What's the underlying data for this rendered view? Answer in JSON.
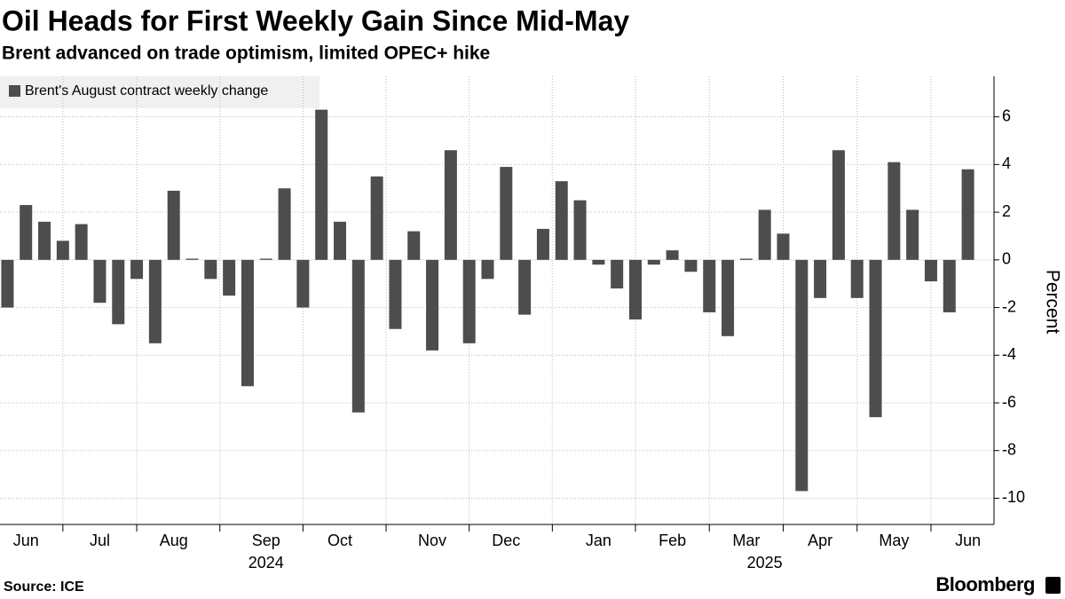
{
  "chart_data": {
    "type": "bar",
    "title": "Oil Heads for First Weekly Gain Since Mid-May",
    "subtitle": "Brent advanced on trade optimism, limited OPEC+ hike",
    "legend_label": "Brent's August contract weekly change",
    "y_axis_label": "Percent",
    "source": "Source: ICE",
    "brand": "Bloomberg",
    "color": "#4d4d4d",
    "categories": [
      null,
      "Jun",
      null,
      null,
      null,
      "Jul",
      null,
      null,
      null,
      "Aug",
      null,
      null,
      null,
      null,
      "Sep",
      null,
      null,
      null,
      "Oct",
      null,
      null,
      null,
      null,
      "Nov",
      null,
      null,
      null,
      "Dec",
      null,
      null,
      null,
      null,
      "Jan",
      null,
      null,
      null,
      "Feb",
      null,
      null,
      null,
      "Mar",
      null,
      null,
      null,
      "Apr",
      null,
      null,
      null,
      "May",
      null,
      null,
      null,
      "Jun"
    ],
    "years": [
      null,
      null,
      null,
      null,
      null,
      null,
      null,
      null,
      null,
      null,
      null,
      null,
      null,
      null,
      "2024",
      null,
      null,
      null,
      null,
      null,
      null,
      null,
      null,
      null,
      null,
      null,
      null,
      null,
      null,
      null,
      null,
      null,
      null,
      null,
      null,
      null,
      null,
      null,
      null,
      null,
      null,
      "2025",
      null,
      null,
      null,
      null,
      null,
      null,
      null,
      null,
      null,
      null,
      null
    ],
    "values": [
      -2.0,
      2.3,
      1.6,
      0.8,
      1.5,
      -1.8,
      -2.7,
      -0.8,
      -3.5,
      2.9,
      0.05,
      -0.8,
      -1.5,
      -5.3,
      0.05,
      3.0,
      -2.0,
      6.3,
      1.6,
      -6.4,
      3.5,
      -2.9,
      1.2,
      -3.8,
      4.6,
      -3.5,
      -0.8,
      3.9,
      -2.3,
      1.3,
      3.3,
      2.5,
      -0.2,
      -1.2,
      -2.5,
      -0.2,
      0.4,
      -0.5,
      -2.2,
      -3.2,
      0.05,
      2.1,
      1.1,
      -9.7,
      -1.6,
      4.6,
      -1.6,
      -6.6,
      4.1,
      2.1,
      -0.9,
      -2.2,
      3.8
    ],
    "ylim": [
      -11.1,
      7.7
    ],
    "yticks": [
      -10,
      -8,
      -6,
      -4,
      -2,
      0,
      2,
      4,
      6
    ],
    "grid": true
  }
}
